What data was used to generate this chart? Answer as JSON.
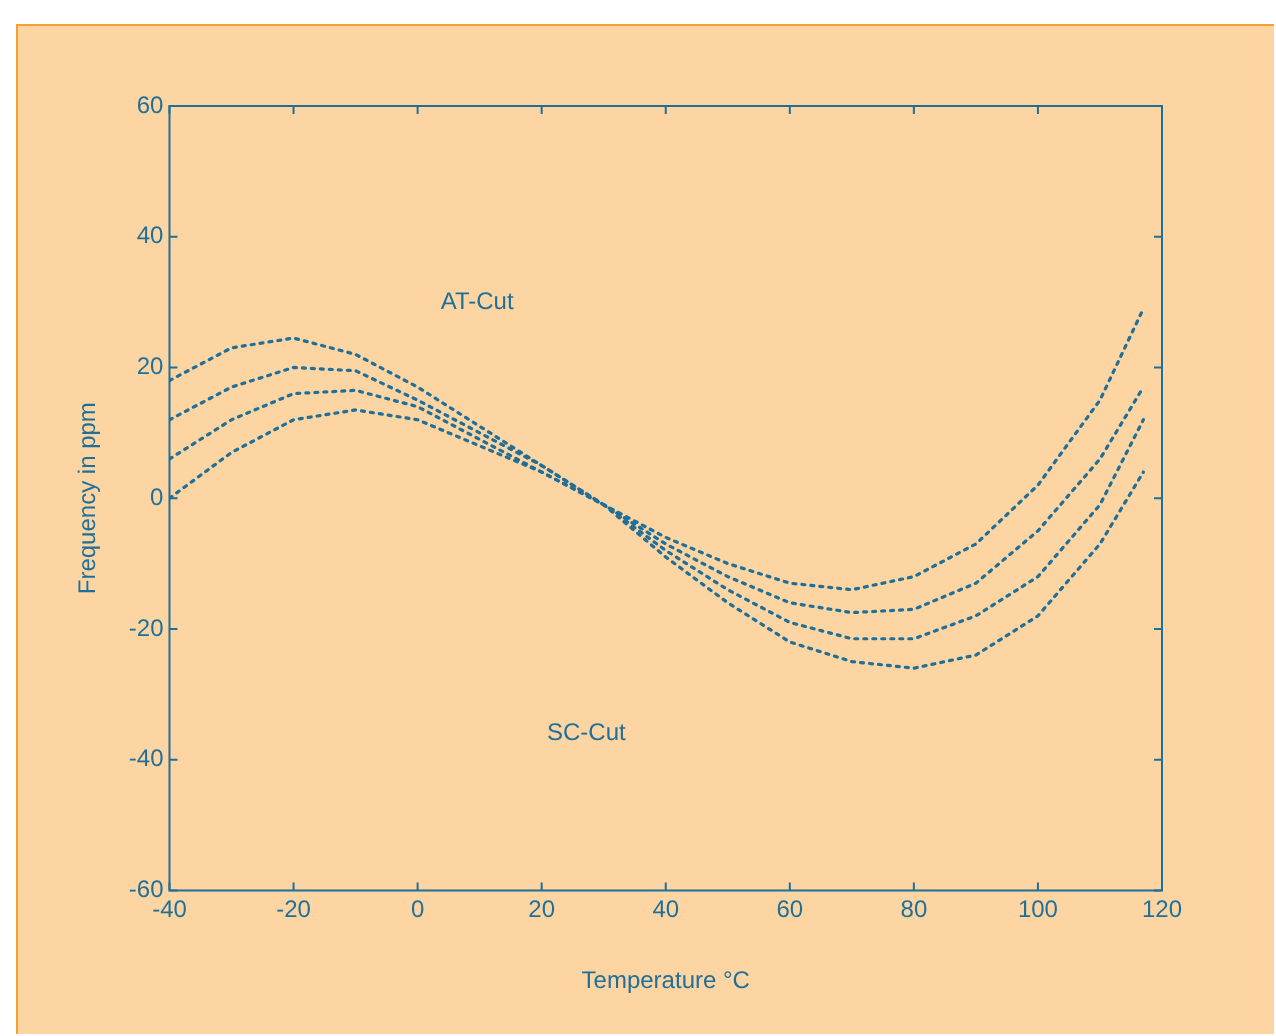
{
  "chart_data": {
    "type": "line",
    "xlabel": "Temperature °C",
    "ylabel": "Frequency in ppm",
    "annotations": [
      "AT-Cut",
      "SC-Cut"
    ],
    "x": [
      -40,
      -30,
      -20,
      -10,
      0,
      10,
      20,
      30,
      40,
      50,
      60,
      70,
      80,
      90,
      100,
      110,
      117
    ],
    "series": [
      {
        "color": "#1f6f99",
        "values": [
          18,
          23,
          24.5,
          22,
          17,
          11,
          5,
          -1,
          -6,
          -10,
          -13,
          -14,
          -12,
          -7,
          2,
          15,
          29
        ]
      },
      {
        "color": "#1f6f99",
        "values": [
          12,
          17,
          20,
          19.5,
          15,
          10,
          5,
          -1,
          -7,
          -12,
          -16,
          -17.5,
          -17,
          -13,
          -5,
          6,
          17
        ]
      },
      {
        "color": "#1f6f99",
        "values": [
          6,
          12,
          16,
          16.5,
          14,
          9,
          4,
          -1,
          -8,
          -14,
          -19,
          -21.5,
          -21.5,
          -18,
          -12,
          -1,
          12
        ]
      },
      {
        "color": "#1f6f99",
        "values": [
          0,
          7,
          12,
          13.5,
          12,
          8,
          4,
          -1,
          -9,
          -16,
          -22,
          -25,
          -26,
          -24,
          -18,
          -7,
          4
        ]
      }
    ],
    "xlim": [
      -40,
      120
    ],
    "xticks": [
      -40,
      -20,
      0,
      20,
      40,
      60,
      80,
      100,
      120
    ],
    "ylim": [
      -60,
      60
    ],
    "yticks": [
      -60,
      -40,
      -20,
      0,
      20,
      40,
      60
    ],
    "grid": false,
    "legend": false,
    "marker": "none",
    "line_style": "dotted"
  }
}
